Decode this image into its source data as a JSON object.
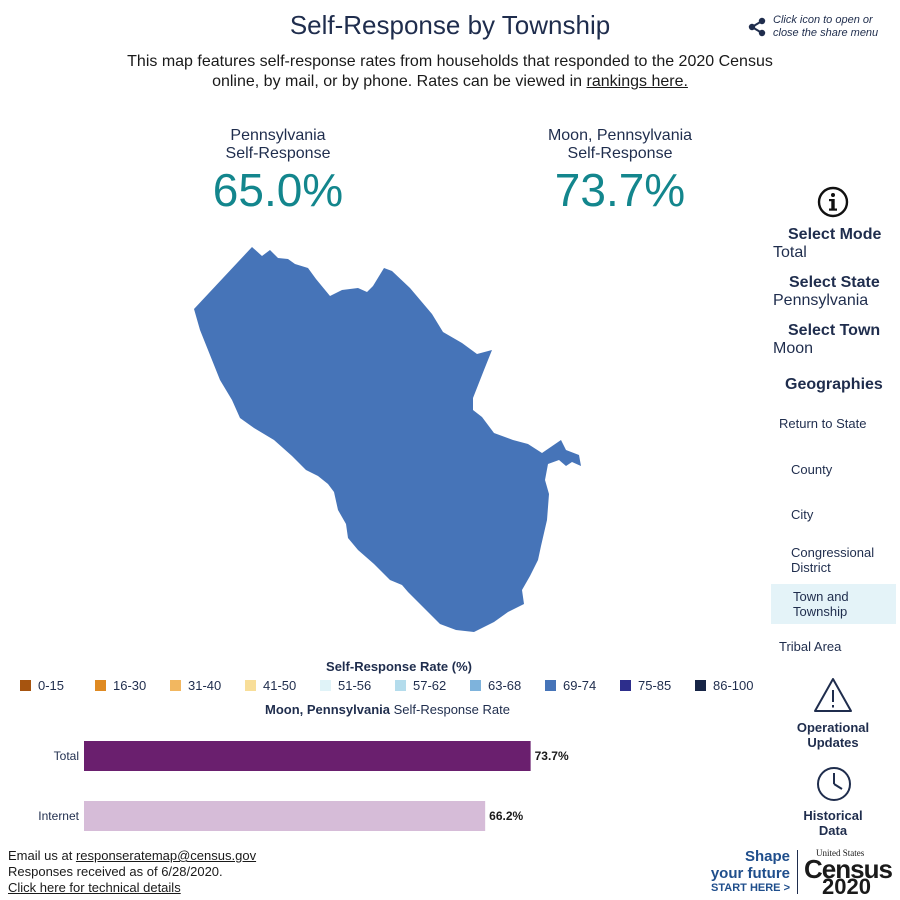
{
  "header": {
    "title": "Self-Response by Township",
    "subtitle_text": "This map features self-response rates from households that responded to the 2020 Census online, by mail, or by phone. Rates can be viewed in",
    "subtitle_link": "rankings here."
  },
  "share": {
    "hint": "Click icon to open or close the share menu",
    "icon": "share-icon"
  },
  "stats": {
    "state": {
      "label_line1": "Pennsylvania",
      "label_line2": "Self-Response",
      "value": "65.0%"
    },
    "town": {
      "label_line1": "Moon, Pennsylvania",
      "label_line2": "Self-Response",
      "value": "73.7%"
    }
  },
  "map": {
    "fill_color": "#4674b8",
    "bin": "69-74"
  },
  "panel": {
    "info_icon": "info-icon",
    "mode_label": "Select Mode",
    "mode_value": "Total",
    "state_label": "Select State",
    "state_value": "Pennsylvania",
    "town_label": "Select Town",
    "town_value": "Moon",
    "geographies_label": "Geographies",
    "geographies": {
      "return_state": "Return to State",
      "county": "County",
      "city": "City",
      "congressional": "Congressional District",
      "town": "Town and Township",
      "tribal": "Tribal Area"
    },
    "active_geography": "Town and Township",
    "operational_label": "Operational Updates",
    "historical_label": "Historical Data"
  },
  "legend": {
    "title": "Self-Response Rate (%)",
    "items": [
      {
        "label": "0-15",
        "color": "#a6540f"
      },
      {
        "label": "16-30",
        "color": "#df8a22"
      },
      {
        "label": "31-40",
        "color": "#f2b760"
      },
      {
        "label": "41-50",
        "color": "#f8de99"
      },
      {
        "label": "51-56",
        "color": "#e0f3f8"
      },
      {
        "label": "57-62",
        "color": "#b4dcec"
      },
      {
        "label": "63-68",
        "color": "#7eb3dc"
      },
      {
        "label": "69-74",
        "color": "#4674b8"
      },
      {
        "label": "75-85",
        "color": "#2d2e8c"
      },
      {
        "label": "86-100",
        "color": "#172546"
      }
    ]
  },
  "bar_section": {
    "title_bold": "Moon, Pennsylvania",
    "title_rest": "Self-Response Rate"
  },
  "chart_data": {
    "type": "bar",
    "orientation": "horizontal",
    "categories": [
      "Total",
      "Internet"
    ],
    "values": [
      73.7,
      66.2
    ],
    "value_labels": [
      "73.7%",
      "66.2%"
    ],
    "colors": [
      "#6a1f6e",
      "#d6bcd8"
    ],
    "xlim": [
      0,
      100
    ]
  },
  "footer": {
    "email_prefix": "Email us at",
    "email": "responseratemap@census.gov",
    "received": "Responses received as of 6/28/2020.",
    "details_link": "Click here for technical details"
  },
  "brand": {
    "shape_line1": "Shape",
    "shape_line2": "your future",
    "start": "START HERE >",
    "us": "United States",
    "census": "Census",
    "year": "2020"
  }
}
